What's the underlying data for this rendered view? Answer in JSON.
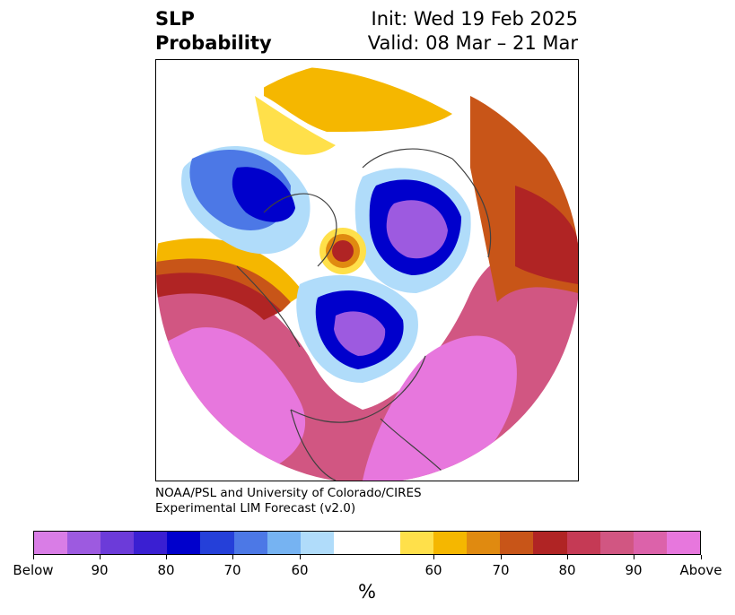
{
  "title": {
    "left_line1": "SLP",
    "left_line2": "Probability",
    "right_line1": "Init: Wed 19 Feb 2025",
    "right_line2": "Valid: 08 Mar – 21 Mar"
  },
  "credit": {
    "line1": "NOAA/PSL and University of Colorado/CIRES",
    "line2": "Experimental LIM Forecast (v2.0)"
  },
  "colorbar": {
    "colors": [
      "#d97de6",
      "#9d5ae0",
      "#6c3bd9",
      "#3a1fd2",
      "#0000cc",
      "#2540d9",
      "#4c78e6",
      "#76b3f2",
      "#b0dcfa",
      "#ffffff",
      "#ffffff",
      "#ffe04a",
      "#f5b700",
      "#e08a10",
      "#c85518",
      "#b02424",
      "#c53a55",
      "#d15682",
      "#dc62aa",
      "#e777dd"
    ],
    "tick_labels": [
      "Below",
      "90",
      "80",
      "70",
      "60",
      "60",
      "70",
      "80",
      "90",
      "Above"
    ],
    "unit": "%"
  },
  "map_colors": {
    "below_high": "#9d5ae0",
    "below_mid": "#0000cc",
    "below_low": "#4c78e6",
    "below_faint": "#b0dcfa",
    "above_faint": "#ffe04a",
    "above_low": "#f5b700",
    "above_mid": "#e08a10",
    "above_orange": "#c85518",
    "above_red": "#b02424",
    "above_pink": "#d15682",
    "above_high": "#e777dd",
    "coast": "#404040"
  }
}
